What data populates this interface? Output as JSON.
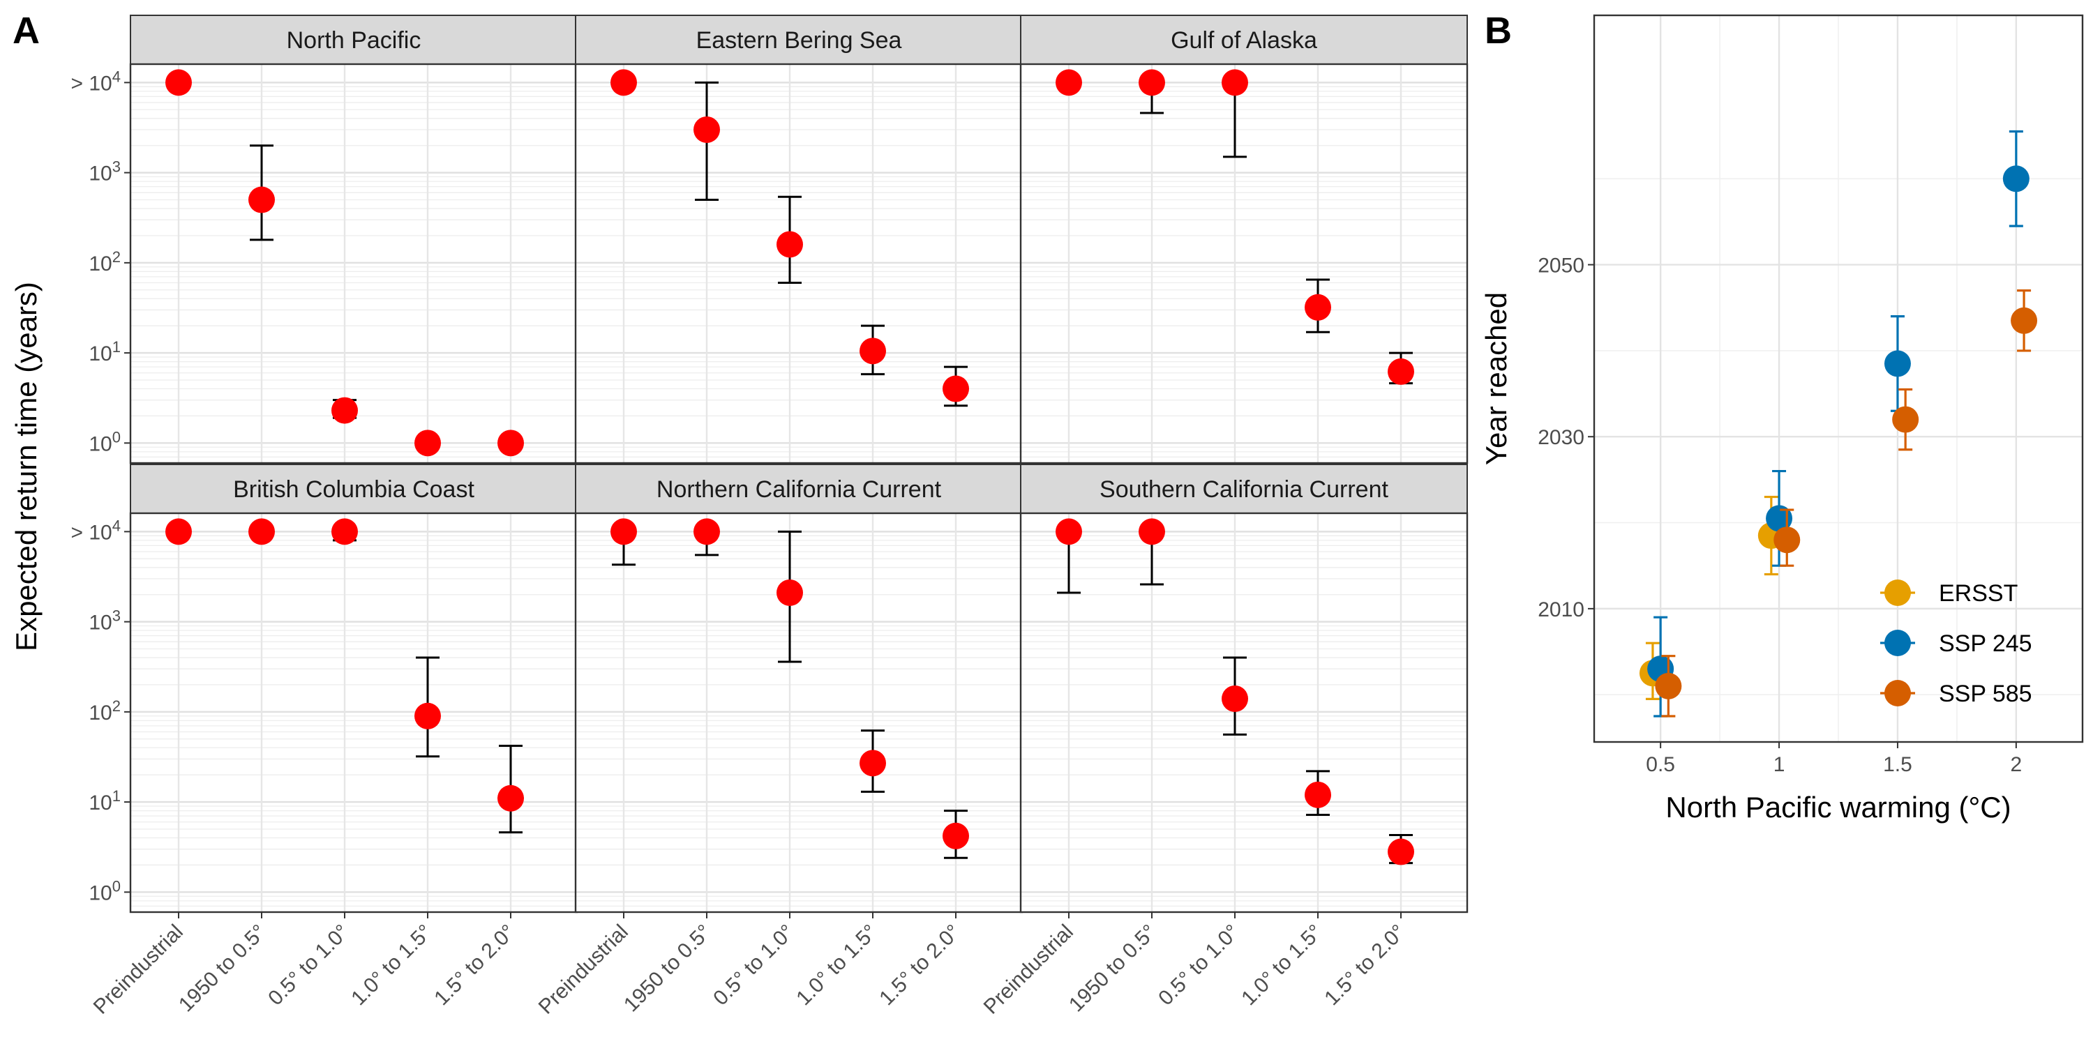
{
  "panel_labels": [
    "A",
    "B"
  ],
  "chart_data": [
    {
      "type": "scatter",
      "panel": "A",
      "subtype": "faceted point-range (log y)",
      "ylabel": "Expected return time (years)",
      "xlabel": "",
      "y_scale": "log10",
      "y_ticks": [
        {
          "value": 1,
          "label": "10^0"
        },
        {
          "value": 10,
          "label": "10^1"
        },
        {
          "value": 100,
          "label": "10^2"
        },
        {
          "value": 1000,
          "label": "10^3"
        },
        {
          "value": 10000,
          "label": "> 10^4"
        }
      ],
      "ylim": [
        0.6,
        16000
      ],
      "categories": [
        "Preindustrial",
        "1950 to 0.5°",
        "0.5° to 1.0°",
        "1.0° to 1.5°",
        "1.5° to 2.0°"
      ],
      "point_color": "#ff0000",
      "grid": true,
      "facets": [
        {
          "title": "North Pacific",
          "points": [
            {
              "y": 10000,
              "lo": null,
              "hi": null
            },
            {
              "y": 500,
              "lo": 180,
              "hi": 2000
            },
            {
              "y": 2.3,
              "lo": 1.9,
              "hi": 3.0
            },
            {
              "y": 1.0,
              "lo": null,
              "hi": null
            },
            {
              "y": 1.0,
              "lo": null,
              "hi": null
            }
          ]
        },
        {
          "title": "Eastern Bering Sea",
          "points": [
            {
              "y": 10000,
              "lo": null,
              "hi": null
            },
            {
              "y": 3000,
              "lo": 500,
              "hi": 10000
            },
            {
              "y": 160,
              "lo": 60,
              "hi": 540
            },
            {
              "y": 10.5,
              "lo": 5.8,
              "hi": 20
            },
            {
              "y": 4.0,
              "lo": 2.6,
              "hi": 7.0
            }
          ]
        },
        {
          "title": "Gulf of Alaska",
          "points": [
            {
              "y": 10000,
              "lo": null,
              "hi": null
            },
            {
              "y": 10000,
              "lo": 4600,
              "hi": 10000
            },
            {
              "y": 10000,
              "lo": 1500,
              "hi": 10000
            },
            {
              "y": 32,
              "lo": 17,
              "hi": 65
            },
            {
              "y": 6.2,
              "lo": 4.6,
              "hi": 10
            }
          ]
        },
        {
          "title": "British Columbia Coast",
          "points": [
            {
              "y": 10000,
              "lo": null,
              "hi": null
            },
            {
              "y": 10000,
              "lo": null,
              "hi": null
            },
            {
              "y": 10000,
              "lo": 8000,
              "hi": 10000
            },
            {
              "y": 90,
              "lo": 32,
              "hi": 400
            },
            {
              "y": 11,
              "lo": 4.6,
              "hi": 42
            }
          ]
        },
        {
          "title": "Northern California Current",
          "points": [
            {
              "y": 10000,
              "lo": 4300,
              "hi": 10000
            },
            {
              "y": 10000,
              "lo": 5500,
              "hi": 10000
            },
            {
              "y": 2100,
              "lo": 360,
              "hi": 10000
            },
            {
              "y": 27,
              "lo": 13,
              "hi": 62
            },
            {
              "y": 4.2,
              "lo": 2.4,
              "hi": 8.0
            }
          ]
        },
        {
          "title": "Southern California Current",
          "points": [
            {
              "y": 10000,
              "lo": 2100,
              "hi": 10000
            },
            {
              "y": 10000,
              "lo": 2600,
              "hi": 10000
            },
            {
              "y": 140,
              "lo": 56,
              "hi": 400
            },
            {
              "y": 12,
              "lo": 7.2,
              "hi": 22
            },
            {
              "y": 2.8,
              "lo": 2.1,
              "hi": 4.3
            }
          ]
        }
      ]
    },
    {
      "type": "scatter",
      "panel": "B",
      "subtype": "point-range, dodged",
      "xlabel": "North Pacific warming (°C)",
      "ylabel": "Year reached",
      "x_ticks": [
        0.5,
        1,
        1.5,
        2
      ],
      "x_tick_labels": [
        "0.5",
        "1",
        "1.5",
        "2"
      ],
      "y_ticks": [
        2010,
        2030,
        2050
      ],
      "xlim": [
        0.22,
        2.28
      ],
      "ylim": [
        1994.5,
        2079
      ],
      "grid": true,
      "legend_position": "bottom-right",
      "series": [
        {
          "name": "ERSST",
          "color": "#E69F00",
          "points": [
            {
              "x": 0.5,
              "y": 2002.5,
              "lo": 1999.5,
              "hi": 2006
            },
            {
              "x": 1.0,
              "y": 2018.5,
              "lo": 2014,
              "hi": 2023
            }
          ]
        },
        {
          "name": "SSP 245",
          "color": "#0072B2",
          "points": [
            {
              "x": 0.5,
              "y": 2003,
              "lo": 1997.5,
              "hi": 2009
            },
            {
              "x": 1.0,
              "y": 2020.5,
              "lo": 2015,
              "hi": 2026
            },
            {
              "x": 1.5,
              "y": 2038.5,
              "lo": 2033,
              "hi": 2044
            },
            {
              "x": 2.0,
              "y": 2060,
              "lo": 2054.5,
              "hi": 2065.5
            }
          ]
        },
        {
          "name": "SSP 585",
          "color": "#D55E00",
          "points": [
            {
              "x": 0.5,
              "y": 2001,
              "lo": 1997.5,
              "hi": 2004.5
            },
            {
              "x": 1.0,
              "y": 2018,
              "lo": 2015,
              "hi": 2021.5
            },
            {
              "x": 1.5,
              "y": 2032,
              "lo": 2028.5,
              "hi": 2035.5
            },
            {
              "x": 2.0,
              "y": 2043.5,
              "lo": 2040,
              "hi": 2047
            }
          ]
        }
      ]
    }
  ]
}
